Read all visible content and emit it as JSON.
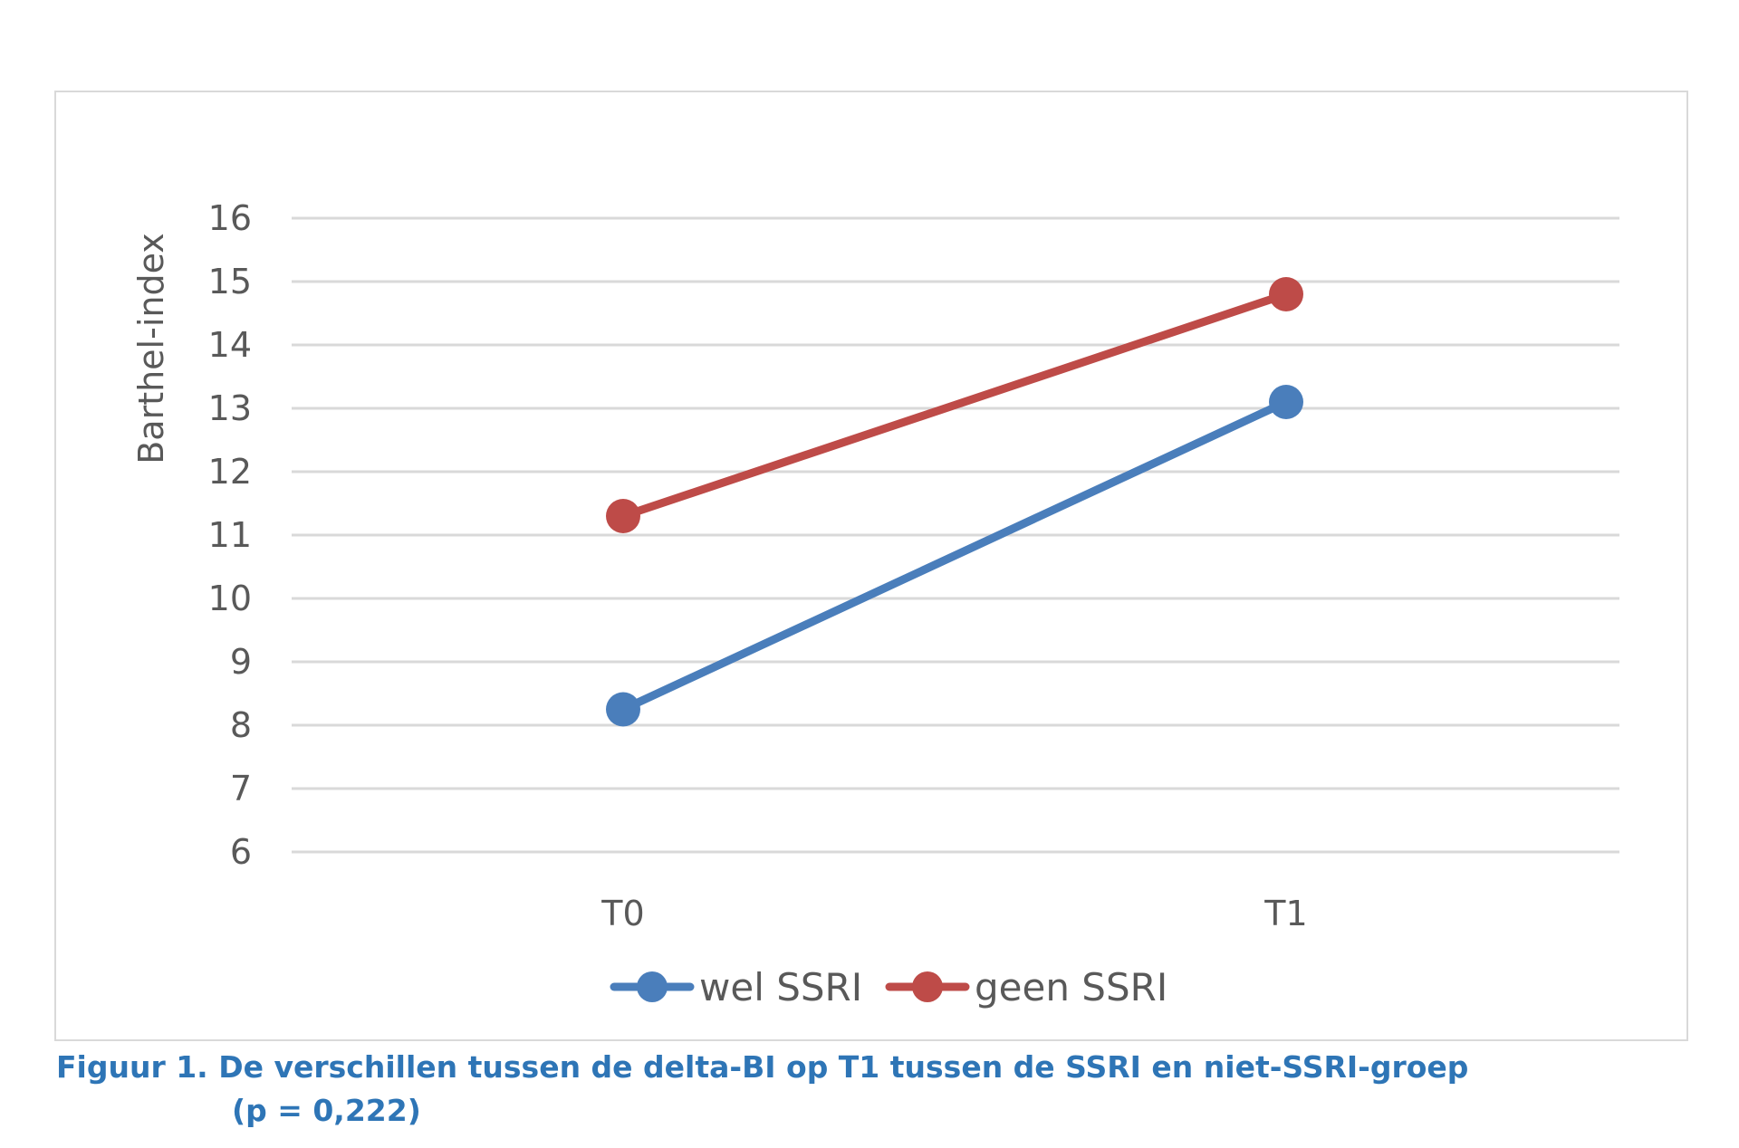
{
  "chart_data": {
    "type": "line",
    "categories": [
      "T0",
      "T1"
    ],
    "series": [
      {
        "name": "wel SSRI",
        "values": [
          8.25,
          13.1
        ],
        "color": "#4a7ebb"
      },
      {
        "name": "geen SSRI",
        "values": [
          11.3,
          14.8
        ],
        "color": "#be4b48"
      }
    ],
    "ylabel": "Barthel-index",
    "ylim": [
      6,
      16
    ],
    "yticks": [
      "6",
      "7",
      "8",
      "9",
      "10",
      "11",
      "12",
      "13",
      "14",
      "15",
      "16"
    ],
    "grid": true,
    "legend_position": "bottom",
    "gridline_color": "#d9d9d9"
  },
  "caption": {
    "line1": "Figuur 1. De verschillen tussen de delta-BI op T1 tussen de SSRI en niet-SSRI-groep",
    "line2": "(p = 0,222)",
    "color": "#2e75b6"
  }
}
